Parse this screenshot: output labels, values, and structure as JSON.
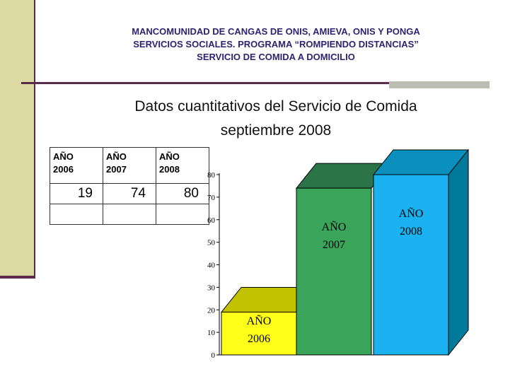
{
  "header": {
    "line1": "MANCOMUNIDAD DE CANGAS DE ONIS, AMIEVA, ONIS Y PONGA",
    "line2": "SERVICIOS SOCIALES. PROGRAMA “ROMPIENDO DISTANCIAS”",
    "line3": "SERVICIO DE COMIDA A DOMICILIO"
  },
  "subtitle": {
    "line1": "Datos cuantitativos del Servicio de Comida",
    "line2": "septiembre 2008"
  },
  "table": {
    "headers": [
      {
        "word": "AÑO",
        "year": "2006"
      },
      {
        "word": "AÑO",
        "year": "2007"
      },
      {
        "word": "AÑO",
        "year": "2008"
      }
    ],
    "values": [
      "19",
      "74",
      "80"
    ]
  },
  "colors": {
    "header_text": "#2e2370",
    "accent_dark": "#5a2a4a",
    "sidebar": "#dcd9a3"
  },
  "chart_data": {
    "type": "bar",
    "bar_style": "3d",
    "categories": [
      "AÑO 2006",
      "AÑO 2007",
      "AÑO 2008"
    ],
    "values": [
      19,
      74,
      80
    ],
    "colors": [
      {
        "front": "#ffff1a",
        "top": "#c2c200"
      },
      {
        "front": "#3aa55a",
        "top": "#2a7448"
      },
      {
        "front": "#1ab2f0",
        "top": "#0b8fbd"
      }
    ],
    "bar_labels": [
      {
        "line1": "AÑO",
        "line2": "2006"
      },
      {
        "line1": "AÑO",
        "line2": "2007"
      },
      {
        "line1": "AÑO",
        "line2": "2008"
      }
    ],
    "ylim": [
      0,
      80
    ],
    "yticks": [
      0,
      10,
      20,
      30,
      40,
      50,
      60,
      70,
      80
    ],
    "grid": false,
    "legend": "none"
  }
}
